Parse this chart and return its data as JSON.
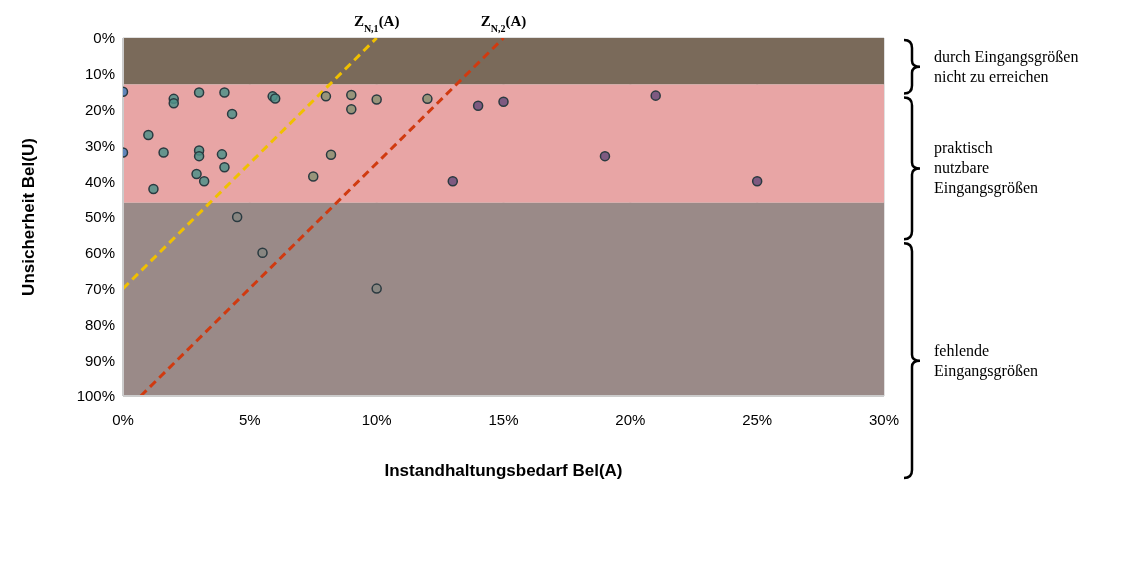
{
  "chart_data": {
    "type": "scatter",
    "xlabel": "Instandhaltungsbedarf Bel(A)",
    "ylabel": "Unsicherheit Bel(U)",
    "xlim": [
      0,
      30
    ],
    "xticks": [
      {
        "value": 0,
        "label": "0%"
      },
      {
        "value": 5,
        "label": "5%"
      },
      {
        "value": 10,
        "label": "10%"
      },
      {
        "value": 15,
        "label": "15%"
      },
      {
        "value": 20,
        "label": "20%"
      },
      {
        "value": 25,
        "label": "25%"
      },
      {
        "value": 30,
        "label": "30%"
      }
    ],
    "ylim": [
      100,
      0
    ],
    "yticks": [
      {
        "value": 0,
        "label": "0%"
      },
      {
        "value": 10,
        "label": "10%"
      },
      {
        "value": 20,
        "label": "20%"
      },
      {
        "value": 30,
        "label": "30%"
      },
      {
        "value": 40,
        "label": "40%"
      },
      {
        "value": 50,
        "label": "50%"
      },
      {
        "value": 60,
        "label": "60%"
      },
      {
        "value": 70,
        "label": "70%"
      },
      {
        "value": 80,
        "label": "80%"
      },
      {
        "value": 90,
        "label": "90%"
      },
      {
        "value": 100,
        "label": "100%"
      }
    ],
    "grid": true,
    "marker": "circle",
    "series": [
      {
        "color": "#4a7ebb",
        "x": [
          0,
          0
        ],
        "values": [
          15,
          32
        ]
      },
      {
        "color": "#4f9088",
        "x": [
          2,
          2,
          3,
          4,
          5.9,
          6,
          4.3,
          1,
          1.6,
          3,
          3,
          3.9,
          4,
          2.9,
          3.2,
          1.2
        ],
        "values": [
          17,
          18.2,
          15.2,
          15.2,
          16.3,
          16.9,
          21.2,
          27.1,
          32,
          31.4,
          33,
          32.5,
          36.1,
          38,
          40,
          42.2
        ]
      },
      {
        "color": "#8a9072",
        "x": [
          8,
          9,
          9,
          10,
          12,
          8.2,
          7.5
        ],
        "values": [
          16.3,
          15.9,
          19.9,
          17.2,
          17,
          32.6,
          38.7
        ]
      },
      {
        "color": "#6b4c7a",
        "x": [
          14,
          15,
          21,
          19,
          13,
          25
        ],
        "values": [
          18.9,
          17.8,
          16.1,
          33,
          40,
          40
        ]
      },
      {
        "color": "#858580",
        "x": [
          4.5,
          5.5,
          10
        ],
        "values": [
          50,
          60,
          70
        ]
      },
      {
        "type": "line",
        "color": "#f0c000",
        "line_style": "dashed",
        "marker": "none",
        "x": [
          0,
          10
        ],
        "values": [
          70,
          0
        ]
      },
      {
        "type": "line",
        "color": "#d03a10",
        "line_style": "dashed",
        "marker": "none",
        "x": [
          0.7,
          15
        ],
        "values": [
          100,
          0
        ]
      }
    ],
    "bands": [
      {
        "axis": "y",
        "from": 0,
        "to": 13,
        "color": "#7a6a5a"
      },
      {
        "axis": "y",
        "from": 13,
        "to": 46,
        "color": "#e8a5a5"
      },
      {
        "axis": "y",
        "from": 46,
        "to": 100,
        "color": "#9a8a88"
      }
    ],
    "annotations": [
      "durch Eingangsgrößen\nnicht zu erreichen",
      "praktisch\nnutzbare\nEingangsgrößen",
      "fehlende\nEingangsgrößen",
      {
        "text": "Z$_{N,1}$(A)",
        "x": 10,
        "y": 0
      },
      {
        "text": "Z$_{N,2}$(A)",
        "x": 15,
        "y": 0
      }
    ]
  }
}
